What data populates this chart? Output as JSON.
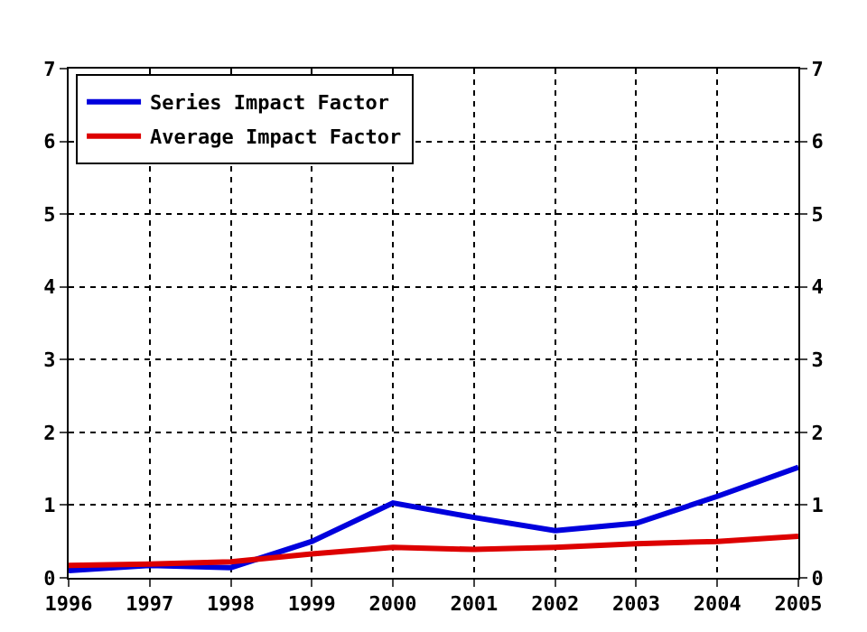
{
  "chart_data": {
    "type": "line",
    "x": [
      1996,
      1997,
      1998,
      1999,
      2000,
      2001,
      2002,
      2003,
      2004,
      2005
    ],
    "series": [
      {
        "name": "Series Impact Factor",
        "color": "#0000dd",
        "values": [
          0.1,
          0.17,
          0.14,
          0.5,
          1.03,
          0.83,
          0.65,
          0.75,
          1.12,
          1.52
        ]
      },
      {
        "name": "Average Impact Factor",
        "color": "#dd0000",
        "values": [
          0.17,
          0.19,
          0.22,
          0.33,
          0.42,
          0.39,
          0.42,
          0.47,
          0.5,
          0.57
        ]
      }
    ],
    "xlim": [
      1996,
      2005
    ],
    "xticks": [
      1996,
      1997,
      1998,
      1999,
      2000,
      2001,
      2002,
      2003,
      2004,
      2005
    ],
    "ylim": [
      0,
      7
    ],
    "yticks": [
      0,
      1,
      2,
      3,
      4,
      5,
      6,
      7
    ],
    "y2lim": [
      0,
      7
    ],
    "y2ticks": [
      0,
      1,
      2,
      3,
      4,
      5,
      6,
      7
    ],
    "grid": true,
    "legend": "top left",
    "marker": "none",
    "line_style": "solid"
  }
}
